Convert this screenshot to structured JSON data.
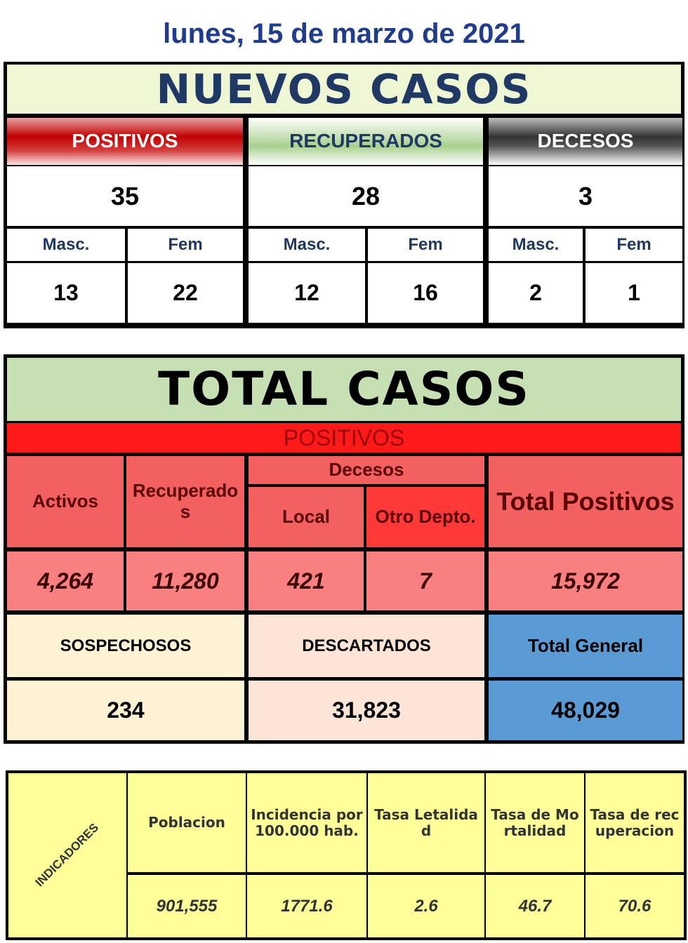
{
  "date": "lunes, 15 de marzo de 2021",
  "nuevos_casos": {
    "title": "NUEVOS CASOS",
    "groups": [
      {
        "label": "POSITIVOS",
        "total": "35",
        "sub_labels": [
          "Masc.",
          "Fem"
        ],
        "sub_values": [
          "13",
          "22"
        ]
      },
      {
        "label": "RECUPERADOS",
        "total": "28",
        "sub_labels": [
          "Masc.",
          "Fem"
        ],
        "sub_values": [
          "12",
          "16"
        ]
      },
      {
        "label": "DECESOS",
        "total": "3",
        "sub_labels": [
          "Masc.",
          "Fem"
        ],
        "sub_values": [
          "2",
          "1"
        ]
      }
    ]
  },
  "total_casos": {
    "title": "TOTAL CASOS",
    "positivos": {
      "label": "POSITIVOS",
      "headers": {
        "activos": "Activos",
        "recuperados": "Recuperados",
        "decesos": "Decesos",
        "local": "Local",
        "otro_depto": "Otro Depto.",
        "total_positivos": "Total Positivos"
      },
      "values": {
        "activos": "4,264",
        "recuperados": "11,280",
        "local": "421",
        "otro_depto": "7",
        "total_positivos": "15,972"
      }
    },
    "otros": {
      "headers": [
        "SOSPECHOSOS",
        "DESCARTADOS",
        "Total General"
      ],
      "values": [
        "234",
        "31,823",
        "48,029"
      ]
    }
  },
  "indicadores": {
    "label": "INDICADORES",
    "headers": [
      "Poblacion",
      "Incidencia por 100.000 hab.",
      "Tasa Letalidad",
      "Tasa de Mortalidad",
      "Tasa de recuperacion"
    ],
    "values": [
      "901,555",
      "1771.6",
      "2.6",
      "46.7",
      "70.6"
    ]
  }
}
